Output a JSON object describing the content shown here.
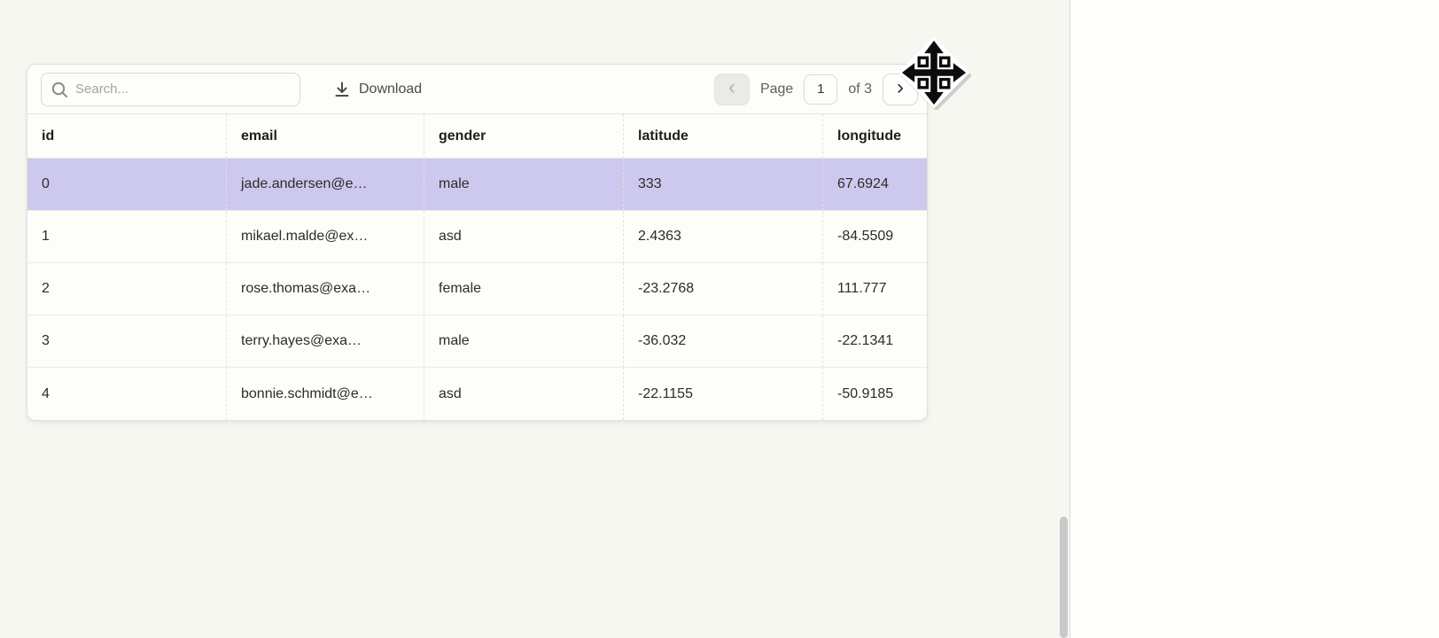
{
  "toolbar": {
    "search": {
      "placeholder": "Search...",
      "value": ""
    },
    "download_label": "Download",
    "pagination": {
      "prev_glyph": "‹",
      "next_glyph": "›",
      "page_label": "Page",
      "current_page": "1",
      "total_label": "of 3"
    }
  },
  "table": {
    "columns": [
      "id",
      "email",
      "gender",
      "latitude",
      "longitude"
    ],
    "rows": [
      {
        "highlighted": true,
        "cells": {
          "id": "0",
          "email": "jade.andersen@e…",
          "gender": "male",
          "latitude": "333",
          "longitude": "67.6924"
        }
      },
      {
        "highlighted": false,
        "cells": {
          "id": "1",
          "email": "mikael.malde@ex…",
          "gender": "asd",
          "latitude": "2.4363",
          "longitude": "-84.5509"
        }
      },
      {
        "highlighted": false,
        "cells": {
          "id": "2",
          "email": "rose.thomas@exa…",
          "gender": "female",
          "latitude": "-23.2768",
          "longitude": "111.777"
        }
      },
      {
        "highlighted": false,
        "cells": {
          "id": "3",
          "email": "terry.hayes@exa…",
          "gender": "male",
          "latitude": "-36.032",
          "longitude": "-22.1341"
        }
      },
      {
        "highlighted": false,
        "cells": {
          "id": "4",
          "email": "bonnie.schmidt@e…",
          "gender": "asd",
          "latitude": "-22.1155",
          "longitude": "-50.9185"
        }
      }
    ]
  },
  "icons": {
    "search": "search-icon",
    "download": "download-icon",
    "prev": "chevron-left-icon",
    "next": "chevron-right-icon",
    "cursor": "move-cursor-icon"
  },
  "colors": {
    "highlight_row": "#cdc8ee",
    "page_background": "#f7f7f2",
    "card_background": "#fdfdfa",
    "panel_background": "#fffffd"
  }
}
